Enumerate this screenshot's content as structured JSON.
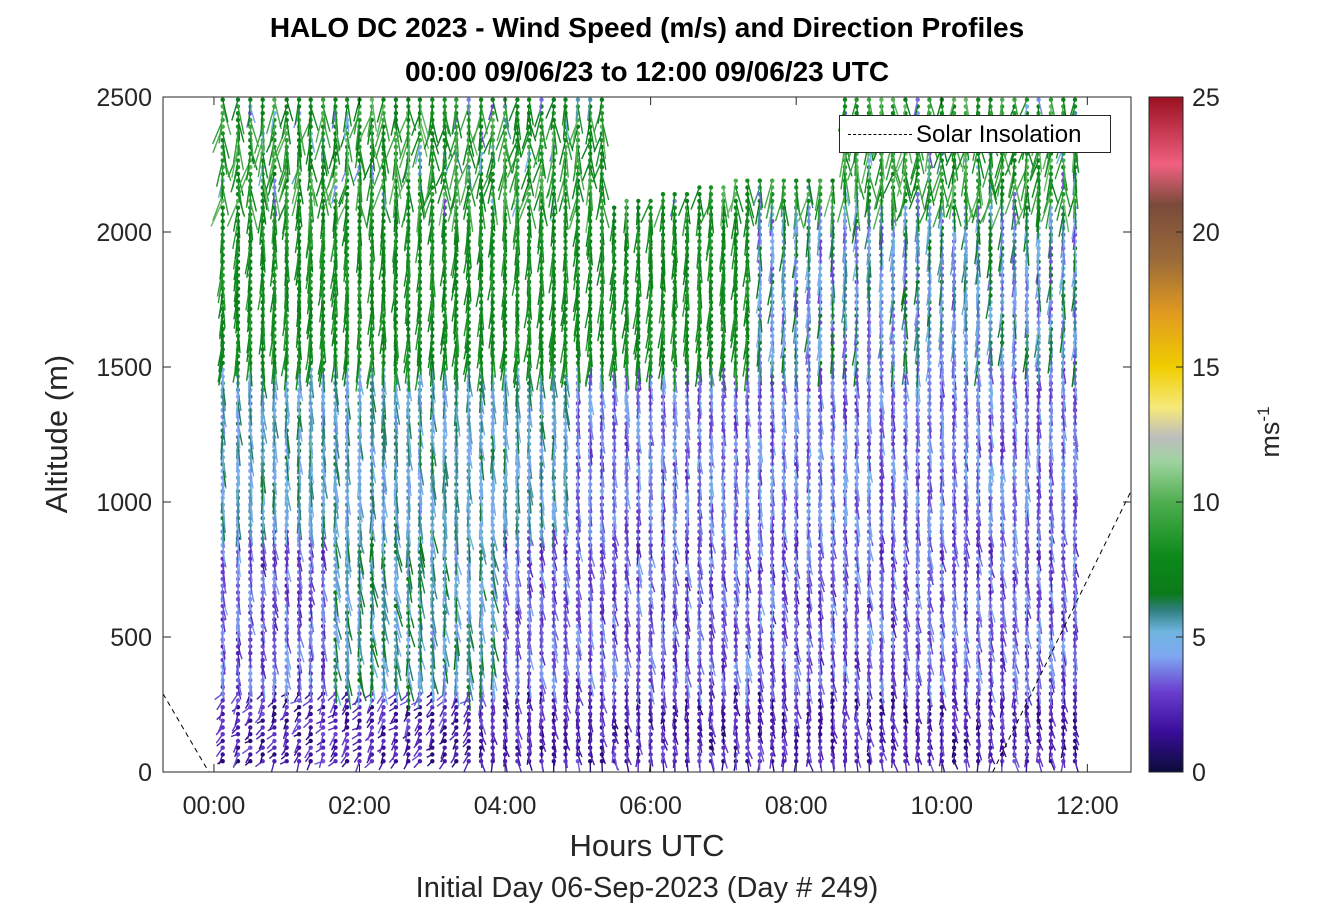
{
  "chart_data": {
    "type": "wind-barb-profile",
    "title": "HALO DC 2023 - Wind Speed (m/s) and Direction Profiles",
    "subtitle": "00:00 09/06/23 to 12:00 09/06/23  UTC",
    "xlabel": "Hours UTC",
    "x_sublabel": "Initial Day 06-Sep-2023 (Day # 249)",
    "ylabel": "Altitude (m)",
    "x_ticks": [
      "00:00",
      "02:00",
      "04:00",
      "06:00",
      "08:00",
      "10:00",
      "12:00"
    ],
    "x_tick_values": [
      0,
      2,
      4,
      6,
      8,
      10,
      12
    ],
    "y_ticks": [
      0,
      500,
      1000,
      1500,
      2000,
      2500
    ],
    "xlim": [
      -0.7,
      12.6
    ],
    "ylim": [
      0,
      2500
    ],
    "colorbar": {
      "label": "ms",
      "label_exponent": "-1",
      "range": [
        0,
        25
      ],
      "ticks": [
        0,
        5,
        10,
        15,
        20,
        25
      ]
    },
    "legend": {
      "entries": [
        "Solar Insolation"
      ],
      "position": "top-right"
    },
    "solar_insolation": {
      "style": "dashed",
      "segments": [
        {
          "x": [
            -0.7,
            -0.07
          ],
          "y": [
            290,
            0
          ]
        },
        {
          "x": [
            10.7,
            12.6
          ],
          "y": [
            0,
            1040
          ]
        }
      ]
    },
    "profile_times_hours": [
      0.12,
      0.33,
      0.5,
      0.67,
      0.83,
      1.0,
      1.17,
      1.33,
      1.5,
      1.67,
      1.83,
      2.0,
      2.17,
      2.33,
      2.5,
      2.67,
      2.83,
      3.0,
      3.17,
      3.33,
      3.5,
      3.67,
      3.83,
      4.0,
      4.17,
      4.33,
      4.5,
      4.67,
      4.83,
      5.0,
      5.17,
      5.33,
      5.5,
      5.67,
      5.83,
      6.0,
      6.17,
      6.33,
      6.5,
      6.67,
      6.83,
      7.0,
      7.17,
      7.33,
      7.5,
      7.67,
      7.83,
      8.0,
      8.17,
      8.33,
      8.5,
      8.67,
      8.83,
      9.0,
      9.17,
      9.33,
      9.5,
      9.67,
      9.83,
      10.0,
      10.17,
      10.33,
      10.5,
      10.67,
      10.83,
      11.0,
      11.17,
      11.33,
      11.5,
      11.67,
      11.83
    ],
    "wind_field_summary": {
      "altitude_bands_m": [
        [
          0,
          300
        ],
        [
          300,
          900
        ],
        [
          900,
          1500
        ],
        [
          1500,
          2100
        ],
        [
          2100,
          2500
        ]
      ],
      "typical_speed_ms": [
        2,
        3.5,
        4.5,
        7.5,
        8
      ],
      "upper_gap_hours": [
        5.5,
        8.5
      ],
      "upper_gap_altitude_m": [
        2150,
        2500
      ]
    }
  }
}
